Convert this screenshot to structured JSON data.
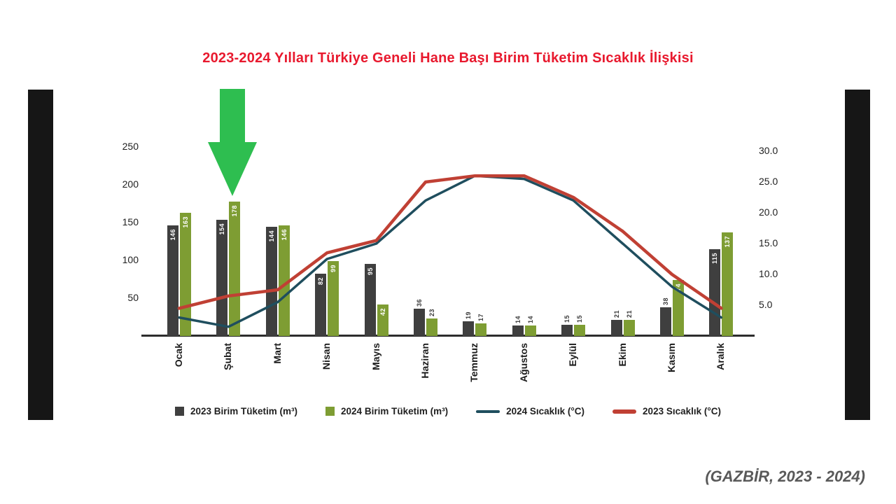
{
  "title": "2023-2024 Yılları Türkiye Geneli Hane Başı Birim Tüketim Sıcaklık İlişkisi",
  "title_color": "#e8192e",
  "caption": "(GAZBİR, 2023 - 2024)",
  "arrow_color": "#2ebe50",
  "axis_line_color": "#2d2d2d",
  "chart_data": {
    "type": "bar",
    "subtype": "combo-bar-line",
    "title": "2023-2024 Yılları Türkiye Geneli Hane Başı Birim Tüketim Sıcaklık İlişkisi",
    "grid": false,
    "legend_position": "bottom",
    "categories": [
      "Ocak",
      "Şubat",
      "Mart",
      "Nisan",
      "Mayıs",
      "Haziran",
      "Temmuz",
      "Ağustos",
      "Eylül",
      "Ekim",
      "Kasım",
      "Aralık"
    ],
    "bar_series": [
      {
        "name": "2023 Birim Tüketim (m³)",
        "color": "#3f3f3f",
        "values": [
          146,
          154,
          144,
          82,
          95,
          36,
          19,
          14,
          15,
          21,
          38,
          115
        ]
      },
      {
        "name": "2024 Birim Tüketim (m³)",
        "color": "#7e9d33",
        "values": [
          163,
          178,
          146,
          99,
          42,
          23,
          17,
          14,
          15,
          21,
          74,
          137
        ]
      }
    ],
    "line_series": [
      {
        "name": "2024 Sıcaklık (°C)",
        "color": "#1f4e5e",
        "values": [
          3,
          1.5,
          5.5,
          12.5,
          15,
          22,
          26,
          25.5,
          22,
          15,
          8,
          3
        ]
      },
      {
        "name": "2023 Sıcaklık (°C)",
        "color": "#c04034",
        "values": [
          4.5,
          6.5,
          7.5,
          13.5,
          15.5,
          25,
          26,
          26,
          22.5,
          17,
          10,
          4.5
        ]
      }
    ],
    "left_axis_ticks": [
      50,
      100,
      150,
      200,
      250
    ],
    "left_axis_max": 250,
    "right_axis_ticks": [
      "5.0",
      "10.0",
      "15.0",
      "20.0",
      "25.0",
      "30.0"
    ],
    "right_axis_max": 30
  }
}
